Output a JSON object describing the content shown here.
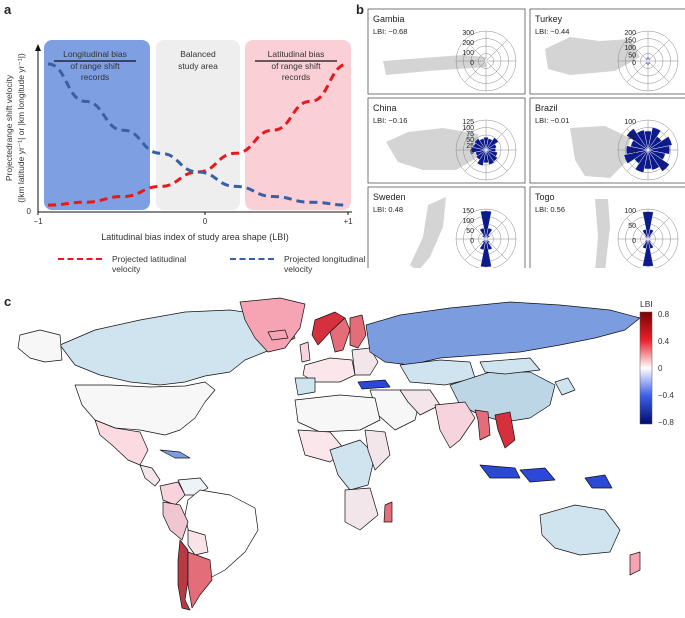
{
  "panels": {
    "a": "a",
    "b": "b",
    "c": "c"
  },
  "panel_a": {
    "ylabel_line1": "Projectedrange shift velocity",
    "ylabel_line2": "(|km latitude yr⁻¹| or |km longitude yr⁻¹|)",
    "xlabel": "Latitudinal bias index of study area shape (LBI)",
    "xticks": [
      "−1",
      "0",
      "+1"
    ],
    "ytick": "0",
    "regions": [
      {
        "line1": "Longitudinal bias",
        "line2": "of range shift",
        "line3": "records",
        "color": "#7f9fe3"
      },
      {
        "line1": "Balanced",
        "line2": "study area",
        "line3": "",
        "color": "#eeeeee"
      },
      {
        "line1": "Latitudinal bias",
        "line2": "of range shift",
        "line3": "records",
        "color": "#fbcfd6"
      }
    ],
    "legend": [
      {
        "line1": "Projected latitudinal",
        "line2": "velocity",
        "color": "#e8191b"
      },
      {
        "line1": "Projected longitudinal",
        "line2": "velocity",
        "color": "#3b5fa3"
      }
    ]
  },
  "chart_data": [
    {
      "type": "line",
      "x": [
        -1,
        -0.75,
        -0.5,
        -0.25,
        0,
        0.25,
        0.5,
        0.75,
        1
      ],
      "series": [
        {
          "name": "Projected latitudinal velocity",
          "values": [
            0.02,
            0.04,
            0.08,
            0.15,
            0.25,
            0.38,
            0.54,
            0.74,
            1.0
          ]
        },
        {
          "name": "Projected longitudinal velocity",
          "values": [
            1.0,
            0.74,
            0.54,
            0.38,
            0.25,
            0.15,
            0.08,
            0.04,
            0.02
          ]
        }
      ],
      "xlabel": "Latitudinal bias index of study area shape (LBI)",
      "ylabel": "Projectedrange shift velocity (|km latitude yr⁻¹| or |km longitude yr⁻¹|)",
      "xlim": [
        -1,
        1
      ]
    },
    {
      "type": "radar",
      "countries": [
        {
          "name": "Gambia",
          "lbi": "LBI: −0.68",
          "rticks": [
            "300",
            "200",
            "100",
            "0"
          ],
          "sectors": [
            25,
            18,
            12,
            8,
            6,
            8,
            12,
            18,
            25,
            18,
            12,
            8,
            6,
            8,
            12,
            18
          ],
          "rmax": 350,
          "color": "#0d1a8a"
        },
        {
          "name": "Turkey",
          "lbi": "LBI: −0.44",
          "rticks": [
            "200",
            "150",
            "100",
            "50",
            "0"
          ],
          "sectors": [
            30,
            25,
            20,
            15,
            10,
            15,
            20,
            25,
            30,
            25,
            20,
            15,
            10,
            15,
            20,
            25
          ],
          "rmax": 220,
          "color": "#0d1a8a"
        },
        {
          "name": "China",
          "lbi": "LBI: −0.16",
          "rticks": [
            "125",
            "100",
            "75",
            "50",
            "25",
            "0"
          ],
          "sectors": [
            60,
            55,
            70,
            50,
            45,
            55,
            65,
            70,
            60,
            75,
            55,
            50,
            70,
            60,
            65,
            55
          ],
          "rmax": 140,
          "color": "#0d1a8a"
        },
        {
          "name": "Brazil",
          "lbi": "LBI: −0.01",
          "rticks": [
            "100",
            "50",
            "0"
          ],
          "sectors": [
            70,
            85,
            60,
            90,
            80,
            65,
            95,
            75,
            70,
            85,
            60,
            90,
            80,
            65,
            95,
            75
          ],
          "rmax": 110,
          "color": "#0d1a8a"
        },
        {
          "name": "Sweden",
          "lbi": "LBI: 0.48",
          "rticks": [
            "150",
            "100",
            "50",
            "0"
          ],
          "sectors": [
            150,
            60,
            25,
            12,
            8,
            12,
            25,
            60,
            150,
            60,
            25,
            12,
            8,
            12,
            25,
            60
          ],
          "rmax": 160,
          "color": "#0d1a8a"
        },
        {
          "name": "Togo",
          "lbi": "LBI: 0.56",
          "rticks": [
            "100",
            "50",
            "0"
          ],
          "sectors": [
            110,
            40,
            15,
            8,
            5,
            8,
            15,
            40,
            110,
            40,
            15,
            8,
            5,
            8,
            15,
            40
          ],
          "rmax": 120,
          "color": "#0d1a8a"
        }
      ]
    },
    {
      "type": "choropleth",
      "colorbar": {
        "title": "LBI",
        "ticks": [
          "0.8",
          "0.4",
          "0",
          "−0.4",
          "−0.8"
        ],
        "range": [
          -0.8,
          0.8
        ]
      }
    }
  ]
}
